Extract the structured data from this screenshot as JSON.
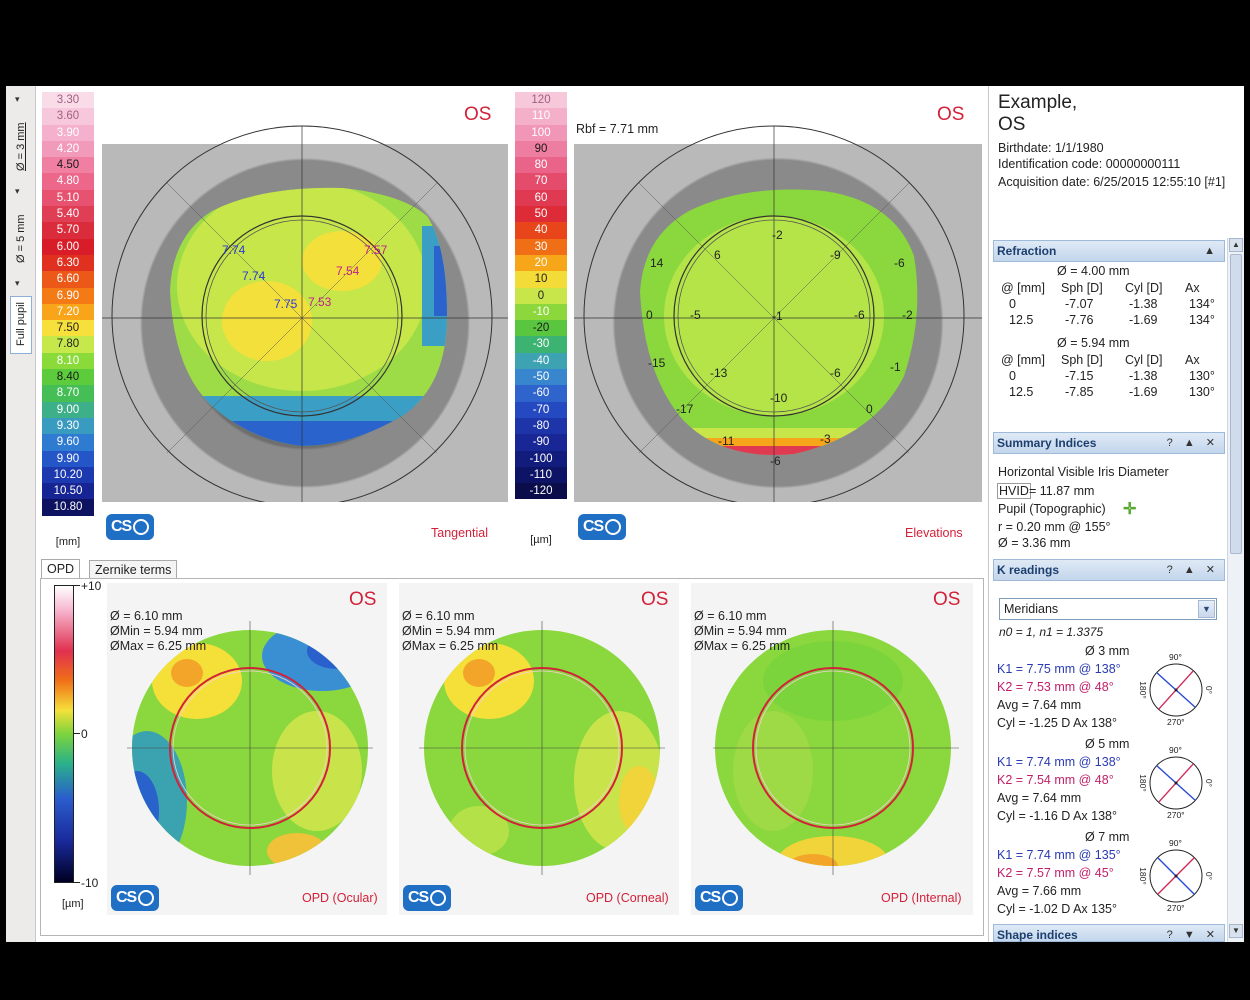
{
  "toolbar": {
    "diam3": "Ø = 3 mm",
    "diam5": "Ø = 5 mm",
    "fullpupil": "Full pupil"
  },
  "scale_mm": {
    "values": [
      "3.30",
      "3.60",
      "3.90",
      "4.20",
      "4.50",
      "4.80",
      "5.10",
      "5.40",
      "5.70",
      "6.00",
      "6.30",
      "6.60",
      "6.90",
      "7.20",
      "7.50",
      "7.80",
      "8.10",
      "8.40",
      "8.70",
      "9.00",
      "9.30",
      "9.60",
      "9.90",
      "10.20",
      "10.50",
      "10.80"
    ],
    "colors": [
      "#f9dce8",
      "#f7c8dc",
      "#f4b0cc",
      "#f29ab9",
      "#f07fa2",
      "#ec678a",
      "#e6526f",
      "#e03e55",
      "#db2c3c",
      "#d91d28",
      "#e0301f",
      "#ec5818",
      "#f37a15",
      "#f9a51a",
      "#f7e03b",
      "#c7e84a",
      "#8ada3a",
      "#5ccc3c",
      "#44be55",
      "#3db089",
      "#3a9bc1",
      "#2f7bd1",
      "#2556c8",
      "#1d39b0",
      "#162593",
      "#0d1360"
    ],
    "unit": "[mm]"
  },
  "scale_um": {
    "values": [
      "120",
      "110",
      "100",
      "90",
      "80",
      "70",
      "60",
      "50",
      "40",
      "30",
      "20",
      "10",
      "0",
      "-10",
      "-20",
      "-30",
      "-40",
      "-50",
      "-60",
      "-70",
      "-80",
      "-90",
      "-100",
      "-110",
      "-120"
    ],
    "colors": [
      "#f7c7da",
      "#f4afc9",
      "#f196b6",
      "#ee7ea1",
      "#ea6489",
      "#e54c6c",
      "#e03a52",
      "#de2b38",
      "#e8461a",
      "#f06f16",
      "#f6a618",
      "#f4dc38",
      "#c8e64a",
      "#8cd73b",
      "#5ac63f",
      "#3cb371",
      "#3da3b3",
      "#3886cd",
      "#2e64cc",
      "#2549c0",
      "#1e35aa",
      "#182795",
      "#121c7c",
      "#0e1465",
      "#0a0d4a"
    ],
    "unit": "[µm]"
  },
  "map_tangential": {
    "eye": "OS",
    "name": "Tangential",
    "labels": [
      "7.74",
      "7.57",
      "7.74",
      "7.54",
      "7.75",
      "7.53"
    ]
  },
  "map_elevations": {
    "eye": "OS",
    "name": "Elevations",
    "rbf": "Rbf = 7.71 mm",
    "labels": [
      "-2",
      "6",
      "-9",
      "-6",
      "14",
      "0",
      "-5",
      "-1",
      "-6",
      "-2",
      "-15",
      "-13",
      "-6",
      "-1",
      "-10",
      "-17",
      "0",
      "-11",
      "-3",
      "-6"
    ]
  },
  "tabs": [
    "OPD",
    "Zernike terms"
  ],
  "opd_scale": {
    "top": "+10",
    "mid": "0",
    "bottom": "-10",
    "unit": "[µm]"
  },
  "opd_panels": [
    {
      "eye": "OS",
      "d": "Ø = 6.10 mm",
      "dmin": "ØMin = 5.94 mm",
      "dmax": "ØMax = 6.25 mm",
      "name": "OPD (Ocular)"
    },
    {
      "eye": "OS",
      "d": "Ø = 6.10 mm",
      "dmin": "ØMin = 5.94 mm",
      "dmax": "ØMax = 6.25 mm",
      "name": "OPD (Corneal)"
    },
    {
      "eye": "OS",
      "d": "Ø = 6.10 mm",
      "dmin": "ØMin = 5.94 mm",
      "dmax": "ØMax = 6.25 mm",
      "name": "OPD (Internal)"
    }
  ],
  "logo": "CS",
  "patient": {
    "name": "Example,",
    "eye": "OS",
    "birthdate": "Birthdate: 1/1/1980",
    "id": "Identification code: 00000000111",
    "acq": "Acquisition date: 6/25/2015 12:55:10 [#1]"
  },
  "refraction": {
    "title": "Refraction",
    "blocks": [
      {
        "diam": "Ø = 4.00 mm",
        "h": [
          "@ [mm]",
          "Sph [D]",
          "Cyl [D]",
          "Ax"
        ],
        "rows": [
          [
            "0",
            "-7.07",
            "-1.38",
            "134°"
          ],
          [
            "12.5",
            "-7.76",
            "-1.69",
            "134°"
          ]
        ]
      },
      {
        "diam": "Ø = 5.94 mm",
        "h": [
          "@ [mm]",
          "Sph [D]",
          "Cyl [D]",
          "Ax"
        ],
        "rows": [
          [
            "0",
            "-7.15",
            "-1.38",
            "130°"
          ],
          [
            "12.5",
            "-7.85",
            "-1.69",
            "130°"
          ]
        ]
      }
    ]
  },
  "summary": {
    "title": "Summary Indices",
    "hvid_title": "Horizontal Visible Iris Diameter",
    "hvid_label": "HVID",
    "hvid_value": "= 11.87 mm",
    "pupil_title": "Pupil (Topographic)",
    "r": "r = 0.20 mm @ 155°",
    "d": "Ø = 3.36 mm"
  },
  "kreadings": {
    "title": "K readings",
    "select": "Meridians",
    "n": "n0 = 1, n1 = 1.3375",
    "blocks": [
      {
        "diam": "Ø 3 mm",
        "k1": "K1 = 7.75 mm  @ 138°",
        "k2": "K2 = 7.53 mm  @ 48°",
        "avg": "Avg = 7.64 mm",
        "cyl": "Cyl = -1.25 D Ax 138°",
        "k1deg": 138
      },
      {
        "diam": "Ø 5 mm",
        "k1": "K1 = 7.74 mm  @ 138°",
        "k2": "K2 = 7.54 mm  @ 48°",
        "avg": "Avg = 7.64 mm",
        "cyl": "Cyl = -1.16 D Ax 138°",
        "k1deg": 138
      },
      {
        "diam": "Ø 7 mm",
        "k1": "K1 = 7.74 mm  @ 135°",
        "k2": "K2 = 7.57 mm  @ 45°",
        "avg": "Avg = 7.66 mm",
        "cyl": "Cyl = -1.02 D Ax 135°",
        "k1deg": 135
      }
    ],
    "dial": {
      "top": "90°",
      "bottom": "270°",
      "left": "180°",
      "right": "0°"
    }
  },
  "shape": {
    "title": "Shape indices"
  },
  "head_controls": "? ▲ ✕"
}
